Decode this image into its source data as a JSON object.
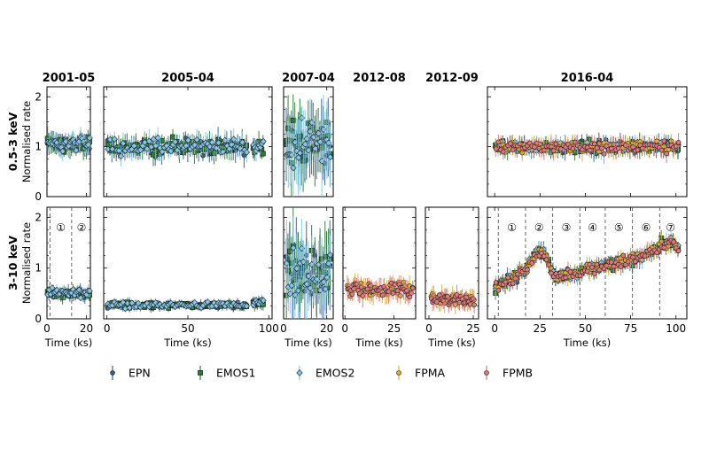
{
  "chart_data": {
    "type": "scatter",
    "row_labels": [
      {
        "band": "0.5-3 keV",
        "ylabel": "Normalised rate"
      },
      {
        "band": "3-10 keV",
        "ylabel": "Normalised rate"
      }
    ],
    "legend": {
      "placement": "bottom",
      "entries": [
        "EPN",
        "EMOS1",
        "EMOS2",
        "FPMA",
        "FPMB"
      ]
    },
    "colors": {
      "EPN": "#3b5e8c",
      "EMOS1": "#2f7a36",
      "EMOS2": "#86c5e6",
      "FPMA": "#d6b13a",
      "FPMB": "#dd7a7a",
      "edge": "#1a1a1a"
    },
    "ylim": [
      0,
      2.2
    ],
    "yticks": [
      0,
      1,
      2
    ],
    "panels": [
      {
        "id": "2001",
        "title": "2001-05",
        "xlabel": "Time (ks)",
        "xlim": [
          0,
          22
        ],
        "xticks": [
          0,
          20
        ],
        "instruments": [
          "EPN",
          "EMOS1",
          "EMOS2"
        ],
        "soft": [
          {
            "from": 0,
            "to": 22,
            "level": 1.05,
            "scatter": 0.12
          }
        ],
        "hard": [
          {
            "from": 0,
            "to": 22,
            "level": 0.5,
            "scatter": 0.07
          }
        ],
        "dividers": [
          1.5,
          12.5
        ],
        "segments": [
          {
            "x": 7,
            "label": "①"
          },
          {
            "x": 17.5,
            "label": "②"
          }
        ]
      },
      {
        "id": "2005",
        "title": "2005-04",
        "xlabel": "Time (ks)",
        "xlim": [
          -2,
          102
        ],
        "xticks": [
          0,
          50,
          100
        ],
        "instruments": [
          "EPN",
          "EMOS1",
          "EMOS2"
        ],
        "soft": [
          {
            "from": 0,
            "to": 87,
            "level": 1.0,
            "scatter": 0.13
          },
          {
            "from": 90,
            "to": 97,
            "level": 1.0,
            "scatter": 0.12
          }
        ],
        "hard": [
          {
            "from": 0,
            "to": 87,
            "level": 0.27,
            "scatter": 0.05
          },
          {
            "from": 90,
            "to": 97,
            "level": 0.3,
            "scatter": 0.06
          }
        ],
        "dividers": [],
        "segments": []
      },
      {
        "id": "2007",
        "title": "2007-04",
        "xlabel": "Time (ks)",
        "xlim": [
          0,
          23
        ],
        "xticks": [
          0,
          20
        ],
        "instruments": [
          "EPN",
          "EMOS1",
          "EMOS2"
        ],
        "soft": [
          {
            "from": 1,
            "to": 22,
            "level": 1.0,
            "scatter": 0.4
          }
        ],
        "hard": [
          {
            "from": 1,
            "to": 22,
            "level": 0.9,
            "scatter": 0.45
          }
        ],
        "dividers": [],
        "segments": []
      },
      {
        "id": "2012-08",
        "title": "2012-08",
        "xlabel": "Time (ks)",
        "xlim": [
          -1,
          36
        ],
        "xticks": [
          0,
          25
        ],
        "instruments": [
          "FPMA",
          "FPMB"
        ],
        "soft": [],
        "hard": [
          {
            "from": 1,
            "to": 35,
            "level": 0.58,
            "scatter": 0.12
          }
        ],
        "dividers": [],
        "segments": []
      },
      {
        "id": "2012-09",
        "title": "2012-09",
        "xlabel": "Time (ks)",
        "xlim": [
          -2,
          28
        ],
        "xticks": [
          0,
          25
        ],
        "instruments": [
          "FPMA",
          "FPMB"
        ],
        "soft": [],
        "hard": [
          {
            "from": 1,
            "to": 26,
            "level": 0.38,
            "scatter": 0.1
          }
        ],
        "dividers": [],
        "segments": []
      },
      {
        "id": "2016",
        "title": "2016-04",
        "xlabel": "Time (ks)",
        "xlim": [
          -4,
          106
        ],
        "xticks": [
          0,
          25,
          50,
          75,
          100
        ],
        "instruments": [
          "EPN",
          "EMOS1",
          "EMOS2",
          "FPMA",
          "FPMB"
        ],
        "soft": [
          {
            "from": 0,
            "to": 102,
            "level": 1.0,
            "scatter": 0.1
          }
        ],
        "hard": [
          {
            "from": 0,
            "to": 102,
            "scatter": 0.09,
            "profile": [
              [
                0,
                0.62
              ],
              [
                8,
                0.75
              ],
              [
                16,
                0.95
              ],
              [
                24,
                1.35
              ],
              [
                28,
                1.3
              ],
              [
                32,
                0.85
              ],
              [
                45,
                0.9
              ],
              [
                50,
                0.95
              ],
              [
                62,
                1.05
              ],
              [
                75,
                1.15
              ],
              [
                85,
                1.3
              ],
              [
                92,
                1.45
              ],
              [
                98,
                1.5
              ],
              [
                102,
                1.35
              ]
            ]
          }
        ],
        "dividers": [
          2,
          17,
          32,
          47,
          61,
          76,
          91
        ],
        "segments": [
          {
            "x": 9.5,
            "label": "①"
          },
          {
            "x": 24.5,
            "label": "②"
          },
          {
            "x": 39.5,
            "label": "③"
          },
          {
            "x": 54,
            "label": "④"
          },
          {
            "x": 68.5,
            "label": "⑤"
          },
          {
            "x": 83.5,
            "label": "⑥"
          },
          {
            "x": 97,
            "label": "⑦"
          }
        ]
      }
    ]
  }
}
